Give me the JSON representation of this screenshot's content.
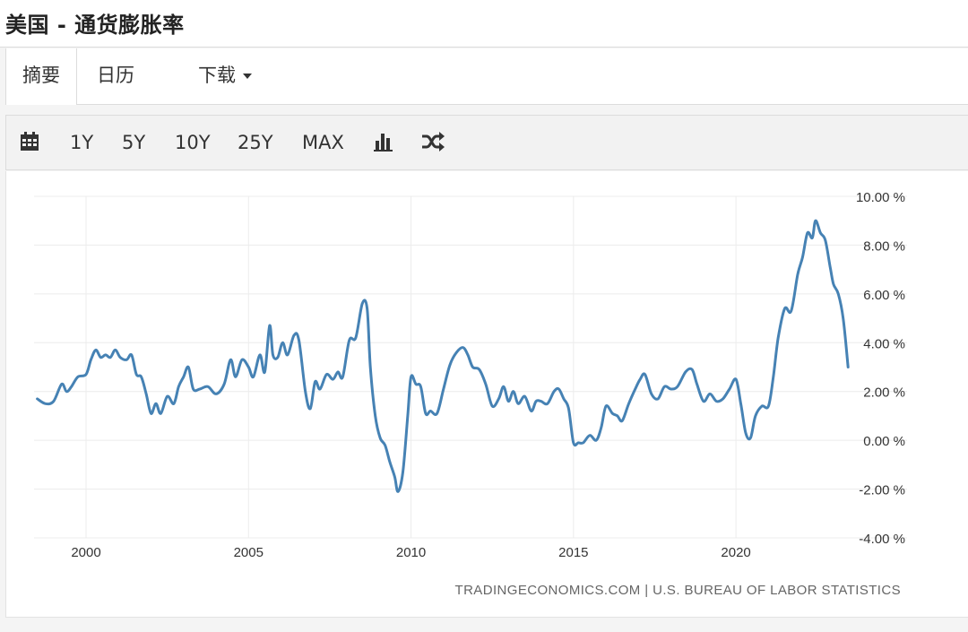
{
  "header": {
    "title": "美国 - 通货膨胀率"
  },
  "tabs": [
    {
      "label": "摘要",
      "active": true
    },
    {
      "label": "日历",
      "active": false
    },
    {
      "label": "下载",
      "active": false
    }
  ],
  "toolbar": {
    "ranges": [
      "1Y",
      "5Y",
      "10Y",
      "25Y",
      "MAX"
    ],
    "icons": [
      "calendar-icon",
      "bar-chart-icon",
      "shuffle-icon"
    ]
  },
  "footer": {
    "source": "TRADINGECONOMICS.COM | U.S. BUREAU OF LABOR STATISTICS"
  },
  "chart_data": {
    "type": "line",
    "title": "",
    "xlabel": "",
    "ylabel": "",
    "unit": "%",
    "ylim": [
      -4,
      10
    ],
    "xlim": [
      1998.4,
      2023.5
    ],
    "y_ticks": [
      "10.00 %",
      "8.00 %",
      "6.00 %",
      "4.00 %",
      "2.00 %",
      "0.00 %",
      "-2.00 %",
      "-4.00 %"
    ],
    "y_tick_values": [
      10,
      8,
      6,
      4,
      2,
      0,
      -2,
      -4
    ],
    "x_ticks": [
      "2000",
      "2005",
      "2010",
      "2015",
      "2020"
    ],
    "x_tick_values": [
      2000,
      2005,
      2010,
      2015,
      2020
    ],
    "grid": true,
    "line_color": "#4682b4",
    "series": [
      {
        "x": [
          1998.5,
          1998.75,
          1999.0,
          1999.25,
          1999.4,
          1999.55,
          1999.75,
          2000.0,
          2000.15,
          2000.3,
          2000.45,
          2000.6,
          2000.75,
          2000.9,
          2001.05,
          2001.25,
          2001.4,
          2001.55,
          2001.7,
          2001.85,
          2002.0,
          2002.15,
          2002.3,
          2002.5,
          2002.7,
          2002.85,
          2003.0,
          2003.15,
          2003.3,
          2003.5,
          2003.75,
          2004.0,
          2004.25,
          2004.45,
          2004.6,
          2004.8,
          2005.0,
          2005.15,
          2005.35,
          2005.5,
          2005.65,
          2005.75,
          2005.9,
          2006.05,
          2006.2,
          2006.4,
          2006.55,
          2006.75,
          2006.9,
          2007.05,
          2007.2,
          2007.4,
          2007.6,
          2007.75,
          2007.9,
          2008.1,
          2008.3,
          2008.5,
          2008.65,
          2008.75,
          2008.9,
          2009.05,
          2009.2,
          2009.35,
          2009.5,
          2009.6,
          2009.75,
          2009.9,
          2010.0,
          2010.15,
          2010.3,
          2010.45,
          2010.6,
          2010.8,
          2011.0,
          2011.2,
          2011.4,
          2011.6,
          2011.75,
          2011.9,
          2012.1,
          2012.3,
          2012.5,
          2012.7,
          2012.85,
          2013.0,
          2013.15,
          2013.3,
          2013.5,
          2013.7,
          2013.85,
          2014.0,
          2014.2,
          2014.4,
          2014.55,
          2014.7,
          2014.85,
          2015.0,
          2015.15,
          2015.3,
          2015.5,
          2015.7,
          2015.85,
          2016.0,
          2016.2,
          2016.35,
          2016.5,
          2016.7,
          2016.9,
          2017.05,
          2017.2,
          2017.4,
          2017.6,
          2017.8,
          2018.0,
          2018.2,
          2018.45,
          2018.65,
          2018.8,
          2019.0,
          2019.2,
          2019.4,
          2019.6,
          2019.8,
          2020.0,
          2020.15,
          2020.3,
          2020.45,
          2020.6,
          2020.8,
          2021.0,
          2021.15,
          2021.3,
          2021.5,
          2021.7,
          2021.9,
          2022.05,
          2022.2,
          2022.35,
          2022.45,
          2022.6,
          2022.75,
          2022.9,
          2023.0,
          2023.15,
          2023.3,
          2023.45
        ],
        "y": [
          1.7,
          1.5,
          1.6,
          2.3,
          2.0,
          2.2,
          2.6,
          2.7,
          3.3,
          3.7,
          3.4,
          3.5,
          3.4,
          3.7,
          3.4,
          3.3,
          3.5,
          2.7,
          2.6,
          1.9,
          1.1,
          1.5,
          1.1,
          1.8,
          1.5,
          2.2,
          2.6,
          3.0,
          2.1,
          2.1,
          2.2,
          1.9,
          2.3,
          3.3,
          2.6,
          3.3,
          3.0,
          2.6,
          3.5,
          2.8,
          4.7,
          3.5,
          3.4,
          4.0,
          3.5,
          4.3,
          4.1,
          2.0,
          1.3,
          2.4,
          2.1,
          2.7,
          2.5,
          2.8,
          2.6,
          4.1,
          4.2,
          5.6,
          5.4,
          3.0,
          1.0,
          0.1,
          -0.2,
          -0.9,
          -1.5,
          -2.1,
          -1.3,
          1.0,
          2.6,
          2.3,
          2.2,
          1.1,
          1.2,
          1.1,
          2.1,
          3.1,
          3.6,
          3.8,
          3.5,
          3.0,
          2.9,
          2.3,
          1.4,
          1.7,
          2.2,
          1.6,
          2.0,
          1.5,
          1.8,
          1.2,
          1.6,
          1.6,
          1.5,
          2.0,
          2.1,
          1.7,
          1.3,
          -0.1,
          -0.1,
          -0.1,
          0.2,
          0.0,
          0.5,
          1.4,
          1.1,
          1.0,
          0.8,
          1.5,
          2.1,
          2.5,
          2.7,
          1.9,
          1.7,
          2.2,
          2.1,
          2.2,
          2.8,
          2.9,
          2.3,
          1.6,
          1.9,
          1.6,
          1.7,
          2.1,
          2.5,
          1.5,
          0.3,
          0.1,
          1.0,
          1.4,
          1.4,
          2.6,
          4.2,
          5.4,
          5.3,
          6.8,
          7.5,
          8.5,
          8.3,
          9.0,
          8.5,
          8.2,
          7.1,
          6.4,
          6.0,
          5.0,
          3.0
        ]
      }
    ]
  }
}
